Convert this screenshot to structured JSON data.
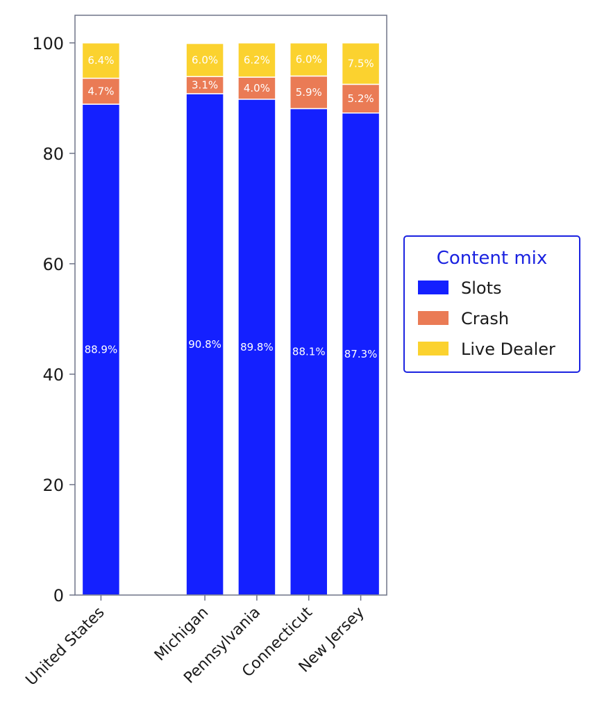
{
  "chart_data": {
    "type": "bar",
    "stacked": true,
    "categories": [
      "United States",
      "",
      "Michigan",
      "Pennsylvania",
      "Connecticut",
      "New Jersey"
    ],
    "series": [
      {
        "name": "Slots",
        "color": "#1420ff",
        "values": [
          88.9,
          null,
          90.8,
          89.8,
          88.1,
          87.3
        ],
        "labels": [
          "88.9%",
          "",
          "90.8%",
          "89.8%",
          "88.1%",
          "87.3%"
        ]
      },
      {
        "name": "Crash",
        "color": "#ea7b55",
        "values": [
          4.7,
          null,
          3.1,
          4.0,
          5.9,
          5.2
        ],
        "labels": [
          "4.7%",
          "",
          "3.1%",
          "4.0%",
          "5.9%",
          "5.2%"
        ]
      },
      {
        "name": "Live Dealer",
        "color": "#fbd22f",
        "values": [
          6.4,
          null,
          6.0,
          6.2,
          6.0,
          7.5
        ],
        "labels": [
          "6.4%",
          "",
          "6.0%",
          "6.2%",
          "6.0%",
          "7.5%"
        ]
      }
    ],
    "ylim": [
      0,
      105
    ],
    "yticks": [
      0,
      20,
      40,
      60,
      80,
      100
    ],
    "grid": false,
    "legend": {
      "title": "Content mix",
      "title_color": "#1a22e0",
      "border_color": "#1a22e0",
      "position": "right"
    }
  }
}
